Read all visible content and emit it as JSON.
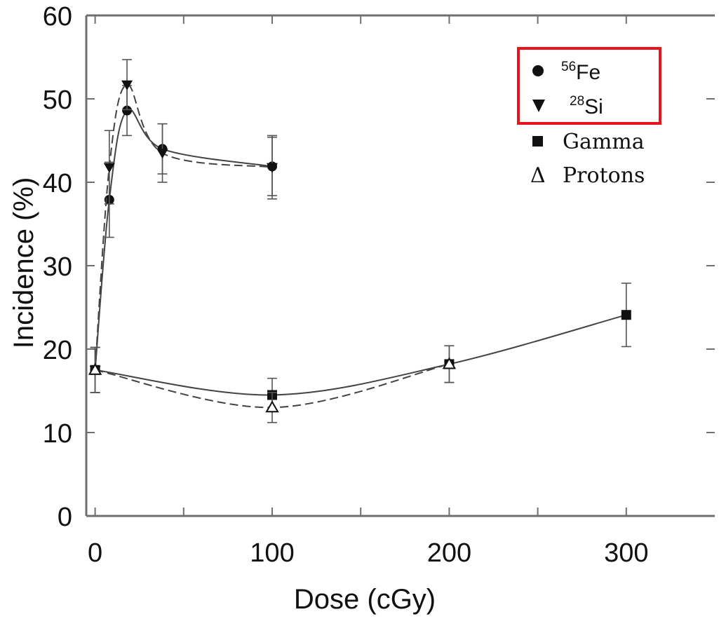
{
  "chart_data": {
    "type": "line",
    "xlabel": "Dose (cGy)",
    "ylabel": "Incidence (%)",
    "xlim": [
      -5,
      350
    ],
    "ylim": [
      0,
      60
    ],
    "xticks": [
      "0",
      "100",
      "200",
      "300"
    ],
    "yticks": [
      "0",
      "10",
      "20",
      "30",
      "40",
      "50",
      "60"
    ],
    "grid": false,
    "legend_position": "top-right",
    "legend_highlight_color": "#e8141b",
    "series": [
      {
        "name_mass": "56",
        "name_element": "Fe",
        "marker": "circle",
        "line": "solid",
        "x": [
          0,
          8,
          18,
          38,
          100
        ],
        "y": [
          17.5,
          37.9,
          48.6,
          44.0,
          41.9
        ],
        "err": [
          2.7,
          4.5,
          3.0,
          3.0,
          3.5
        ]
      },
      {
        "name_mass": "28",
        "name_element": "Si",
        "marker": "triangle-down",
        "line": "dashed",
        "x": [
          0,
          8,
          18,
          38,
          100
        ],
        "y": [
          17.5,
          41.8,
          51.7,
          43.5,
          41.8
        ],
        "err": [
          2.7,
          4.4,
          3.0,
          3.5,
          3.8
        ]
      },
      {
        "name": "Gamma",
        "marker": "square",
        "line": "solid",
        "x": [
          0,
          100,
          200,
          300
        ],
        "y": [
          17.5,
          14.5,
          18.2,
          24.1
        ],
        "err": [
          2.7,
          2.0,
          2.2,
          3.8
        ]
      },
      {
        "name": "Protons",
        "marker": "triangle-up-open",
        "line": "dashed",
        "x": [
          0,
          100,
          200
        ],
        "y": [
          17.5,
          13.0,
          18.2
        ],
        "err": [
          2.7,
          1.8,
          2.2
        ]
      }
    ]
  },
  "legend": {
    "fe_mass": "56",
    "fe_element": "Fe",
    "si_mass": "28",
    "si_element": "Si",
    "gamma_label": "Gamma",
    "protons_symbol": "Δ",
    "protons_label": "Protons"
  }
}
